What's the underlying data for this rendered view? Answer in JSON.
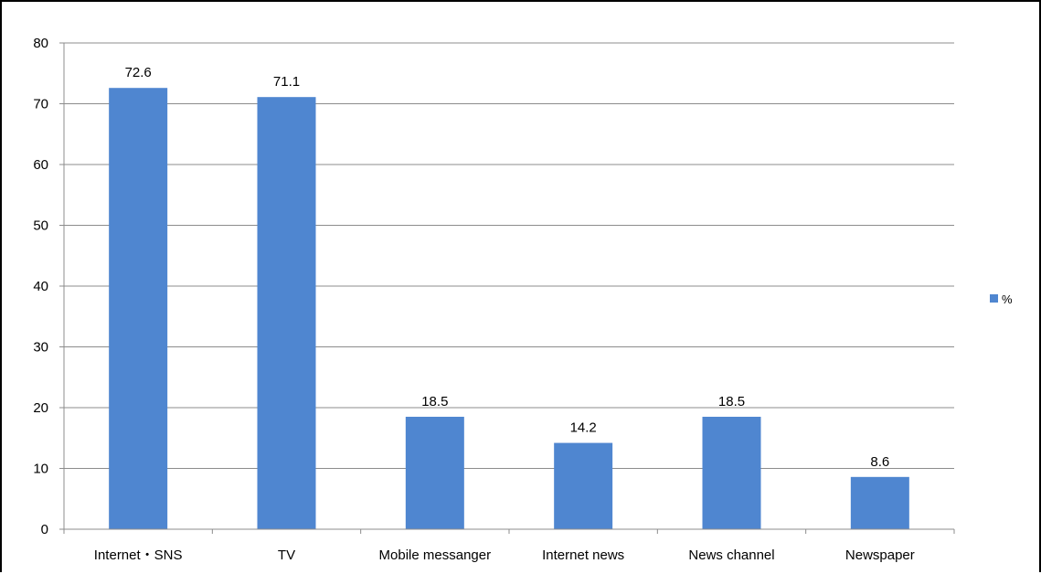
{
  "chart_data": {
    "type": "bar",
    "categories": [
      "Internet・SNS",
      "TV",
      "Mobile messanger",
      "Internet news",
      "News channel",
      "Newspaper"
    ],
    "series": [
      {
        "name": "%",
        "values": [
          72.6,
          71.1,
          18.5,
          14.2,
          18.5,
          8.6
        ]
      }
    ],
    "data_labels": [
      "72.6",
      "71.1",
      "18.5",
      "14.2",
      "18.5",
      "8.6"
    ],
    "y_ticks": [
      "0",
      "10",
      "20",
      "30",
      "40",
      "50",
      "60",
      "70",
      "80"
    ],
    "ylim": [
      0,
      80
    ],
    "grid": true,
    "legend": {
      "position": "right",
      "label": "%"
    },
    "bar_color": "#4f86d0",
    "grid_color": "#8c8c8c",
    "axis_color": "#8c8c8c"
  }
}
